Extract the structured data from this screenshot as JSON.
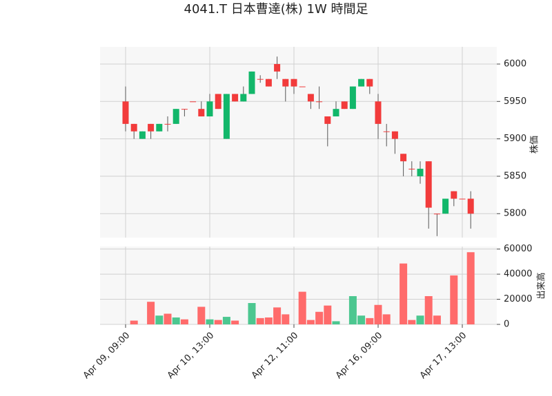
{
  "chart_data": {
    "type": "candlestick",
    "title": "4041.T 日本曹達(株) 1W 時間足",
    "ylabel": "株価",
    "y2label": "出来高",
    "categories": [
      "Apr 09, 09:00",
      null,
      null,
      null,
      null,
      null,
      null,
      null,
      null,
      null,
      "Apr 10, 13:00",
      null,
      null,
      null,
      null,
      null,
      null,
      null,
      null,
      null,
      "Apr 12, 11:00",
      null,
      null,
      null,
      null,
      null,
      null,
      null,
      null,
      null,
      "Apr 16, 09:00",
      null,
      null,
      null,
      null,
      null,
      null,
      null,
      null,
      null,
      "Apr 17, 13:00",
      null
    ],
    "open": [
      5950,
      5920,
      5900,
      5920,
      5910,
      5920,
      5920,
      5940,
      5950,
      5940,
      5930,
      5960,
      5900,
      5960,
      5950,
      5960,
      5980,
      5980,
      6000,
      5980,
      5980,
      5970,
      5960,
      5950,
      5930,
      5930,
      5950,
      5940,
      5970,
      5980,
      5950,
      5910,
      5910,
      5880,
      5860,
      5850,
      5870,
      5800,
      5800,
      5830,
      5820,
      5820
    ],
    "high": [
      5970,
      5920,
      5910,
      5920,
      5920,
      5930,
      5940,
      5940,
      5950,
      5950,
      5960,
      5960,
      5960,
      5960,
      5970,
      5990,
      5985,
      5980,
      6010,
      5980,
      5980,
      5970,
      5960,
      5970,
      5930,
      5950,
      5950,
      5970,
      5980,
      5980,
      5960,
      5920,
      5910,
      5880,
      5870,
      5870,
      5870,
      5800,
      5820,
      5830,
      5820,
      5830
    ],
    "low": [
      5910,
      5900,
      5900,
      5900,
      5910,
      5910,
      5920,
      5930,
      5950,
      5930,
      5930,
      5940,
      5900,
      5950,
      5950,
      5960,
      5975,
      5970,
      5980,
      5950,
      5960,
      5970,
      5940,
      5940,
      5890,
      5930,
      5940,
      5940,
      5970,
      5960,
      5900,
      5890,
      5880,
      5850,
      5850,
      5840,
      5780,
      5770,
      5800,
      5810,
      5820,
      5780
    ],
    "close": [
      5920,
      5910,
      5910,
      5910,
      5920,
      5920,
      5940,
      5940,
      5950,
      5930,
      5950,
      5940,
      5960,
      5950,
      5960,
      5990,
      5980,
      5970,
      5990,
      5970,
      5970,
      5970,
      5950,
      5950,
      5920,
      5940,
      5940,
      5970,
      5980,
      5970,
      5920,
      5910,
      5900,
      5870,
      5860,
      5860,
      5808,
      5800,
      5820,
      5820,
      5820,
      5800
    ],
    "volume": [
      0,
      3000,
      0,
      18000,
      7000,
      8500,
      5500,
      4000,
      0,
      14000,
      4000,
      3500,
      6000,
      3000,
      0,
      17000,
      5000,
      5500,
      13500,
      8000,
      0,
      26000,
      3500,
      10000,
      15000,
      2500,
      0,
      22500,
      7000,
      5000,
      15500,
      8000,
      0,
      48500,
      3500,
      7000,
      22500,
      7000,
      0,
      39000,
      0,
      57500
    ],
    "ylim": [
      5768,
      6023
    ],
    "yticks": [
      5800,
      5850,
      5900,
      5950,
      6000
    ],
    "y2lim": [
      0,
      62000
    ],
    "y2ticks": [
      0,
      20000,
      40000,
      60000
    ],
    "up_color": "#12b76a",
    "down_color": "#f23b3b",
    "volume_up_color": "#4cc790",
    "volume_down_color": "#ff6b6b",
    "grid": true
  }
}
